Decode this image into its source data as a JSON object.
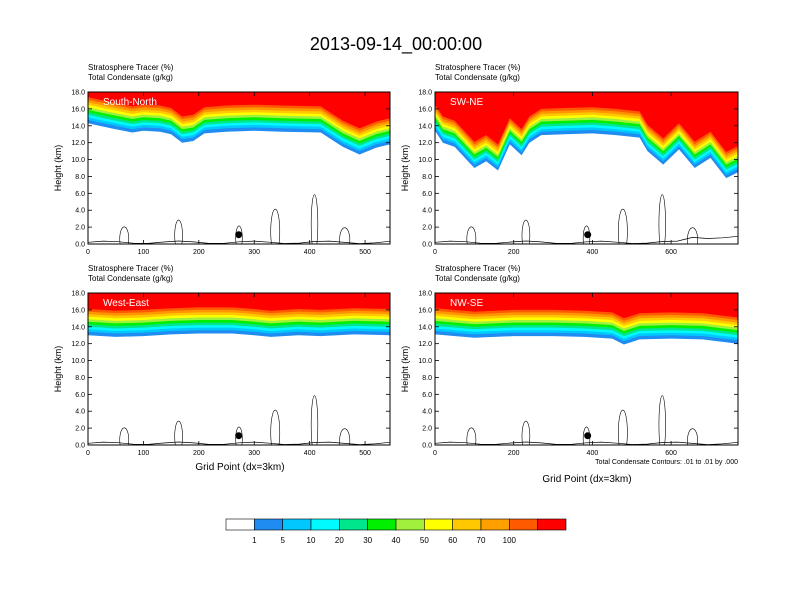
{
  "title": "2013-09-14_00:00:00",
  "panel_header": {
    "line1": "Stratosphere Tracer   (%)",
    "line2": "Total Condensate   (g/kg)"
  },
  "ylabel": "Height (km)",
  "xlabel": "Grid Point (dx=3km)",
  "contour_note": "Total Condensate Contours: .01 to .01 by .000",
  "colorbar": {
    "levels": [
      "1",
      "5",
      "10",
      "20",
      "30",
      "40",
      "50",
      "60",
      "70",
      "100"
    ],
    "colors": [
      "#ffffff",
      "#1e8cf0",
      "#00c8ff",
      "#00faff",
      "#00e68c",
      "#00f000",
      "#a0f03c",
      "#ffff00",
      "#ffc800",
      "#ffa000",
      "#ff5a00",
      "#ff0000"
    ]
  },
  "chart_data": [
    {
      "type": "contour",
      "name": "South-North",
      "xlim": [
        0,
        545
      ],
      "xticks": [
        0,
        100,
        200,
        300,
        400,
        500
      ],
      "ylim": [
        0,
        18
      ],
      "yticks": [
        "0.0",
        "2.0",
        "4.0",
        "6.0",
        "8.0",
        "10.0",
        "12.0",
        "14.0",
        "16.0",
        "18.0"
      ],
      "marker_x": 272,
      "marker_y": 1.1,
      "tracer_base": [
        [
          0,
          14.3
        ],
        [
          20,
          14.0
        ],
        [
          50,
          13.6
        ],
        [
          80,
          13.2
        ],
        [
          100,
          13.4
        ],
        [
          130,
          13.3
        ],
        [
          150,
          13.0
        ],
        [
          170,
          12.0
        ],
        [
          190,
          12.2
        ],
        [
          210,
          13.1
        ],
        [
          250,
          13.3
        ],
        [
          300,
          13.4
        ],
        [
          350,
          13.3
        ],
        [
          420,
          13.2
        ],
        [
          460,
          11.5
        ],
        [
          490,
          10.6
        ],
        [
          520,
          11.4
        ],
        [
          545,
          11.8
        ]
      ]
    },
    {
      "type": "contour",
      "name": "SW-NE",
      "xlim": [
        0,
        770
      ],
      "xticks": [
        0,
        200,
        400,
        600
      ],
      "ylim": [
        0,
        18
      ],
      "yticks": [
        "0.0",
        "2.0",
        "4.0",
        "6.0",
        "8.0",
        "10.0",
        "12.0",
        "14.0",
        "16.0",
        "18.0"
      ],
      "marker_x": 388,
      "marker_y": 1.1,
      "tracer_base": [
        [
          0,
          13.4
        ],
        [
          20,
          12.0
        ],
        [
          50,
          11.5
        ],
        [
          80,
          10.0
        ],
        [
          100,
          9.0
        ],
        [
          130,
          9.8
        ],
        [
          160,
          8.7
        ],
        [
          190,
          11.8
        ],
        [
          220,
          10.5
        ],
        [
          240,
          12.0
        ],
        [
          270,
          12.9
        ],
        [
          330,
          13.0
        ],
        [
          400,
          13.1
        ],
        [
          460,
          12.9
        ],
        [
          520,
          12.6
        ],
        [
          540,
          11.0
        ],
        [
          580,
          9.4
        ],
        [
          620,
          11.2
        ],
        [
          660,
          9.0
        ],
        [
          700,
          10.2
        ],
        [
          740,
          7.8
        ],
        [
          770,
          8.5
        ]
      ]
    },
    {
      "type": "contour",
      "name": "West-East",
      "xlim": [
        0,
        545
      ],
      "xticks": [
        0,
        100,
        200,
        300,
        400,
        500
      ],
      "ylim": [
        0,
        18
      ],
      "yticks": [
        "0.0",
        "2.0",
        "4.0",
        "6.0",
        "8.0",
        "10.0",
        "12.0",
        "14.0",
        "16.0",
        "18.0"
      ],
      "marker_x": 272,
      "marker_y": 1.1,
      "tracer_base": [
        [
          0,
          13.0
        ],
        [
          50,
          12.8
        ],
        [
          100,
          12.9
        ],
        [
          150,
          13.1
        ],
        [
          200,
          13.2
        ],
        [
          260,
          13.2
        ],
        [
          300,
          13.0
        ],
        [
          330,
          12.8
        ],
        [
          380,
          13.0
        ],
        [
          420,
          12.9
        ],
        [
          480,
          13.1
        ],
        [
          545,
          13.0
        ]
      ]
    },
    {
      "type": "contour",
      "name": "NW-SE",
      "xlim": [
        0,
        770
      ],
      "xticks": [
        0,
        200,
        400,
        600
      ],
      "ylim": [
        0,
        18
      ],
      "yticks": [
        "0.0",
        "2.0",
        "4.0",
        "6.0",
        "8.0",
        "10.0",
        "12.0",
        "14.0",
        "16.0",
        "18.0"
      ],
      "marker_x": 388,
      "marker_y": 1.1,
      "tracer_base": [
        [
          0,
          13.1
        ],
        [
          100,
          12.7
        ],
        [
          200,
          12.9
        ],
        [
          300,
          12.9
        ],
        [
          380,
          12.8
        ],
        [
          450,
          12.6
        ],
        [
          480,
          11.9
        ],
        [
          520,
          12.5
        ],
        [
          600,
          12.6
        ],
        [
          680,
          12.5
        ],
        [
          770,
          12.0
        ]
      ]
    }
  ]
}
